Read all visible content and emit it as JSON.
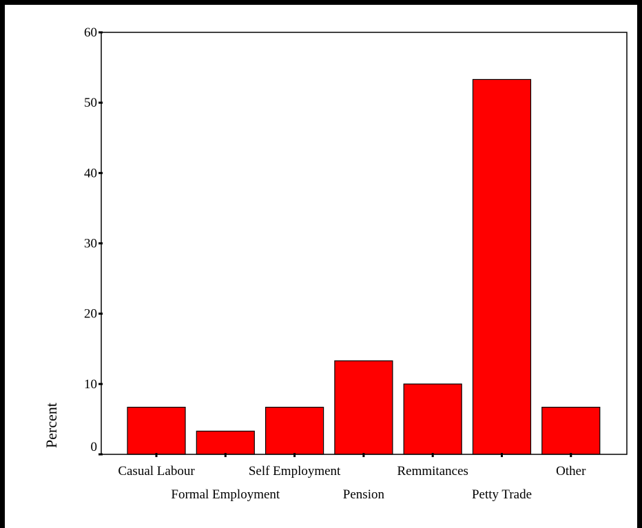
{
  "chart_data": {
    "type": "bar",
    "title": "",
    "xlabel": "",
    "ylabel": "Percent",
    "ylim": [
      0,
      60
    ],
    "yticks": [
      0,
      10,
      20,
      30,
      40,
      50,
      60
    ],
    "categories": [
      "Casual Labour",
      "Formal Employment",
      "Self Employment",
      "Pension",
      "Remmitances",
      "Petty Trade",
      "Other"
    ],
    "values": [
      6.7,
      3.3,
      6.7,
      13.3,
      10.0,
      53.3,
      6.7
    ],
    "bar_color": "#ff0000",
    "grid": false,
    "legend": "none"
  }
}
